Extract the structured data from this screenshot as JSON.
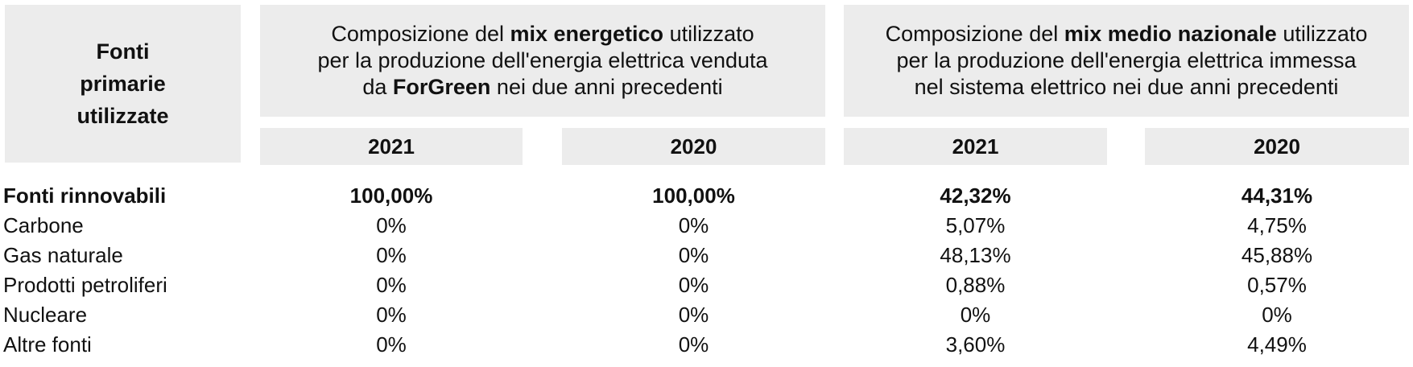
{
  "header": {
    "corner_lines": [
      "Fonti",
      "primarie",
      "utilizzate"
    ],
    "group1": {
      "line1_pre": "Composizione del ",
      "line1_bold": "mix energetico",
      "line1_post": " utilizzato",
      "line2": "per la produzione dell'energia elettrica venduta",
      "line3_pre": "da ",
      "line3_bold": "ForGreen",
      "line3_post": " nei due anni precedenti"
    },
    "group2": {
      "line1_pre": "Composizione del ",
      "line1_bold": "mix medio nazionale",
      "line1_post": " utilizzato",
      "line2": "per la produzione dell'energia elettrica immessa",
      "line3": "nel sistema elettrico nei due anni precedenti"
    },
    "years": [
      "2021",
      "2020",
      "2021",
      "2020"
    ]
  },
  "rows": [
    {
      "label": "Fonti rinnovabili",
      "values": [
        "100,00%",
        "100,00%",
        "42,32%",
        "44,31%"
      ]
    },
    {
      "label": "Carbone",
      "values": [
        "0%",
        "0%",
        "5,07%",
        "4,75%"
      ]
    },
    {
      "label": "Gas naturale",
      "values": [
        "0%",
        "0%",
        "48,13%",
        "45,88%"
      ]
    },
    {
      "label": "Prodotti petroliferi",
      "values": [
        "0%",
        "0%",
        "0,88%",
        "0,57%"
      ]
    },
    {
      "label": "Nucleare",
      "values": [
        "0%",
        "0%",
        "0%",
        "0%"
      ]
    },
    {
      "label": "Altre fonti",
      "values": [
        "0%",
        "0%",
        "3,60%",
        "4,49%"
      ]
    }
  ]
}
